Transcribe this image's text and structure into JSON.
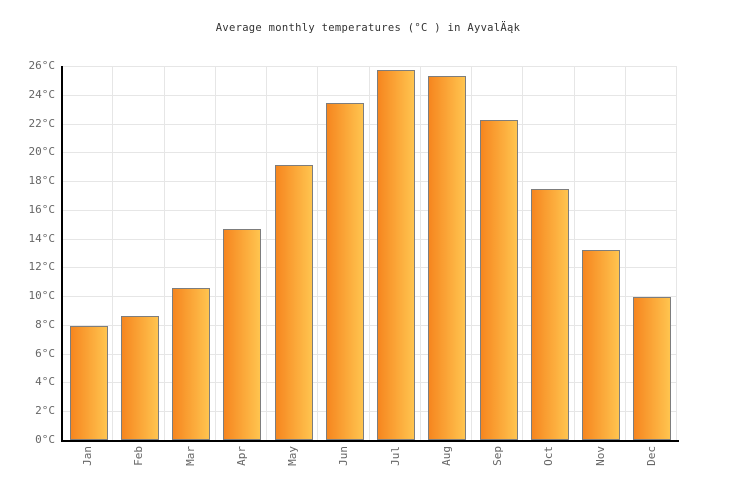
{
  "title": "Average monthly temperatures (°C ) in AyvalÄąk",
  "chart_data": {
    "type": "bar",
    "title": "Average monthly temperatures (°C ) in AyvalÄąk",
    "categories": [
      "Jan",
      "Feb",
      "Mar",
      "Apr",
      "May",
      "Jun",
      "Jul",
      "Aug",
      "Sep",
      "Oct",
      "Nov",
      "Dec"
    ],
    "values": [
      7.8,
      8.5,
      10.4,
      14.5,
      19,
      23.3,
      25.6,
      25.2,
      22.1,
      17.3,
      13.1,
      9.8
    ],
    "xlabel": "",
    "ylabel": "",
    "unit": "°C",
    "ylim": [
      0,
      26
    ],
    "ytick_step": 2,
    "ytick_suffix": "°C",
    "grid": true,
    "legend": "none"
  },
  "style": {
    "background": "#FFFFFF",
    "bar_gradient_left": "#F6861F",
    "bar_gradient_right": "#FFC44F",
    "bar_border": "#7D7D7D",
    "grid_color": "#E6E6E6",
    "axis_color": "#000000",
    "label_color": "#666666",
    "title_color": "#333333"
  }
}
